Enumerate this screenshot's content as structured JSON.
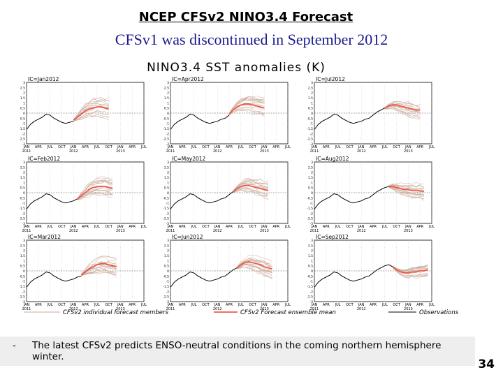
{
  "slide": {
    "title": "NCEP  CFSv2 NINO3.4 Forecast",
    "subtitle": "CFSv1 was discontinued in September 2012",
    "bullet_marker": "-",
    "bullet": "The latest CFSv2 predicts ENSO-neutral conditions in the coming northern hemisphere winter.",
    "page_number": "34"
  },
  "colors": {
    "members": "#c8a898",
    "ensemble_mean": "#ee5a4a",
    "observations": "#000000",
    "subtitle": "#1a1a8c"
  },
  "chart_data": {
    "type": "line",
    "title": "NINO3.4  SST  anomalies  (K)",
    "ylim": [
      -3,
      3
    ],
    "yticks": [
      "3",
      "2.5",
      "2",
      "1.5",
      "1",
      "0.5",
      "0",
      "-0.5",
      "-1",
      "-1.5",
      "-2",
      "-2.5",
      "-3"
    ],
    "xlim": [
      "2011-01",
      "2013-07"
    ],
    "xticks": [
      "JAN",
      "APR",
      "JUL",
      "OCT",
      "JAN",
      "APR",
      "JUL",
      "OCT",
      "JAN",
      "APR",
      "JUL"
    ],
    "xtick_years": [
      {
        "label": "2011",
        "index": 0
      },
      {
        "label": "2012",
        "index": 4
      },
      {
        "label": "2013",
        "index": 8
      }
    ],
    "observations": {
      "months": [
        "2011-01",
        "2011-02",
        "2011-03",
        "2011-04",
        "2011-05",
        "2011-06",
        "2011-07",
        "2011-08",
        "2011-09",
        "2011-10",
        "2011-11",
        "2011-12",
        "2012-01",
        "2012-02",
        "2012-03",
        "2012-04",
        "2012-05",
        "2012-06",
        "2012-07",
        "2012-08",
        "2012-09"
      ],
      "values": [
        -1.6,
        -1.1,
        -0.8,
        -0.6,
        -0.4,
        -0.1,
        -0.2,
        -0.5,
        -0.7,
        -0.9,
        -1.0,
        -0.9,
        -0.8,
        -0.6,
        -0.5,
        -0.2,
        0.1,
        0.3,
        0.5,
        0.6,
        0.4
      ]
    },
    "legend": {
      "members": "CFSv2 individual forecast members",
      "mean": "CFSv2 Forecast ensemble mean",
      "observations": "Observations"
    },
    "panels": [
      {
        "label": "IC=Jan2012",
        "ic": "2012-01",
        "mean": [
          -0.7,
          -0.4,
          -0.1,
          0.2,
          0.4,
          0.5,
          0.6,
          0.6,
          0.5,
          0.4
        ],
        "spread": [
          0.1,
          0.3,
          0.5,
          0.7,
          0.8,
          0.9,
          0.9,
          1.0,
          1.0,
          1.0
        ]
      },
      {
        "label": "IC=Apr2012",
        "ic": "2012-04",
        "mean": [
          -0.1,
          0.3,
          0.6,
          0.8,
          0.9,
          0.9,
          0.8,
          0.7,
          0.6,
          0.5
        ],
        "spread": [
          0.1,
          0.3,
          0.5,
          0.7,
          0.8,
          0.9,
          1.0,
          1.0,
          1.0,
          1.0
        ]
      },
      {
        "label": "IC=Jul2012",
        "ic": "2012-07",
        "mean": [
          0.5,
          0.7,
          0.8,
          0.8,
          0.7,
          0.6,
          0.5,
          0.4,
          0.3,
          0.3
        ],
        "spread": [
          0.1,
          0.3,
          0.4,
          0.5,
          0.6,
          0.7,
          0.8,
          0.8,
          0.8,
          0.8
        ]
      },
      {
        "label": "IC=Feb2012",
        "ic": "2012-02",
        "mean": [
          -0.6,
          -0.3,
          0.0,
          0.3,
          0.5,
          0.6,
          0.6,
          0.6,
          0.5,
          0.4
        ],
        "spread": [
          0.1,
          0.3,
          0.5,
          0.7,
          0.8,
          0.9,
          1.0,
          1.0,
          1.0,
          1.0
        ]
      },
      {
        "label": "IC=May2012",
        "ic": "2012-05",
        "mean": [
          0.1,
          0.4,
          0.6,
          0.7,
          0.7,
          0.6,
          0.5,
          0.4,
          0.3,
          0.2
        ],
        "spread": [
          0.1,
          0.3,
          0.4,
          0.6,
          0.7,
          0.8,
          0.8,
          0.9,
          0.9,
          0.9
        ]
      },
      {
        "label": "IC=Aug2012",
        "ic": "2012-08",
        "mean": [
          0.6,
          0.6,
          0.5,
          0.4,
          0.3,
          0.3,
          0.2,
          0.2,
          0.2,
          0.1
        ],
        "spread": [
          0.1,
          0.3,
          0.4,
          0.5,
          0.6,
          0.7,
          0.7,
          0.8,
          0.8,
          0.8
        ]
      },
      {
        "label": "IC=Mar2012",
        "ic": "2012-03",
        "mean": [
          -0.4,
          -0.1,
          0.2,
          0.4,
          0.6,
          0.7,
          0.7,
          0.6,
          0.5,
          0.4
        ],
        "spread": [
          0.1,
          0.3,
          0.5,
          0.7,
          0.8,
          0.9,
          1.0,
          1.0,
          1.0,
          1.0
        ]
      },
      {
        "label": "IC=Jun2012",
        "ic": "2012-06",
        "mean": [
          0.3,
          0.6,
          0.8,
          0.9,
          0.8,
          0.7,
          0.6,
          0.4,
          0.3,
          0.2
        ],
        "spread": [
          0.1,
          0.3,
          0.4,
          0.6,
          0.7,
          0.8,
          0.8,
          0.9,
          0.9,
          0.9
        ]
      },
      {
        "label": "IC=Sep2012",
        "ic": "2012-09",
        "mean": [
          0.4,
          0.1,
          -0.1,
          -0.2,
          -0.2,
          -0.1,
          -0.1,
          0.0,
          0.0,
          0.1
        ],
        "spread": [
          0.1,
          0.2,
          0.3,
          0.4,
          0.5,
          0.5,
          0.6,
          0.6,
          0.6,
          0.6
        ]
      }
    ]
  }
}
